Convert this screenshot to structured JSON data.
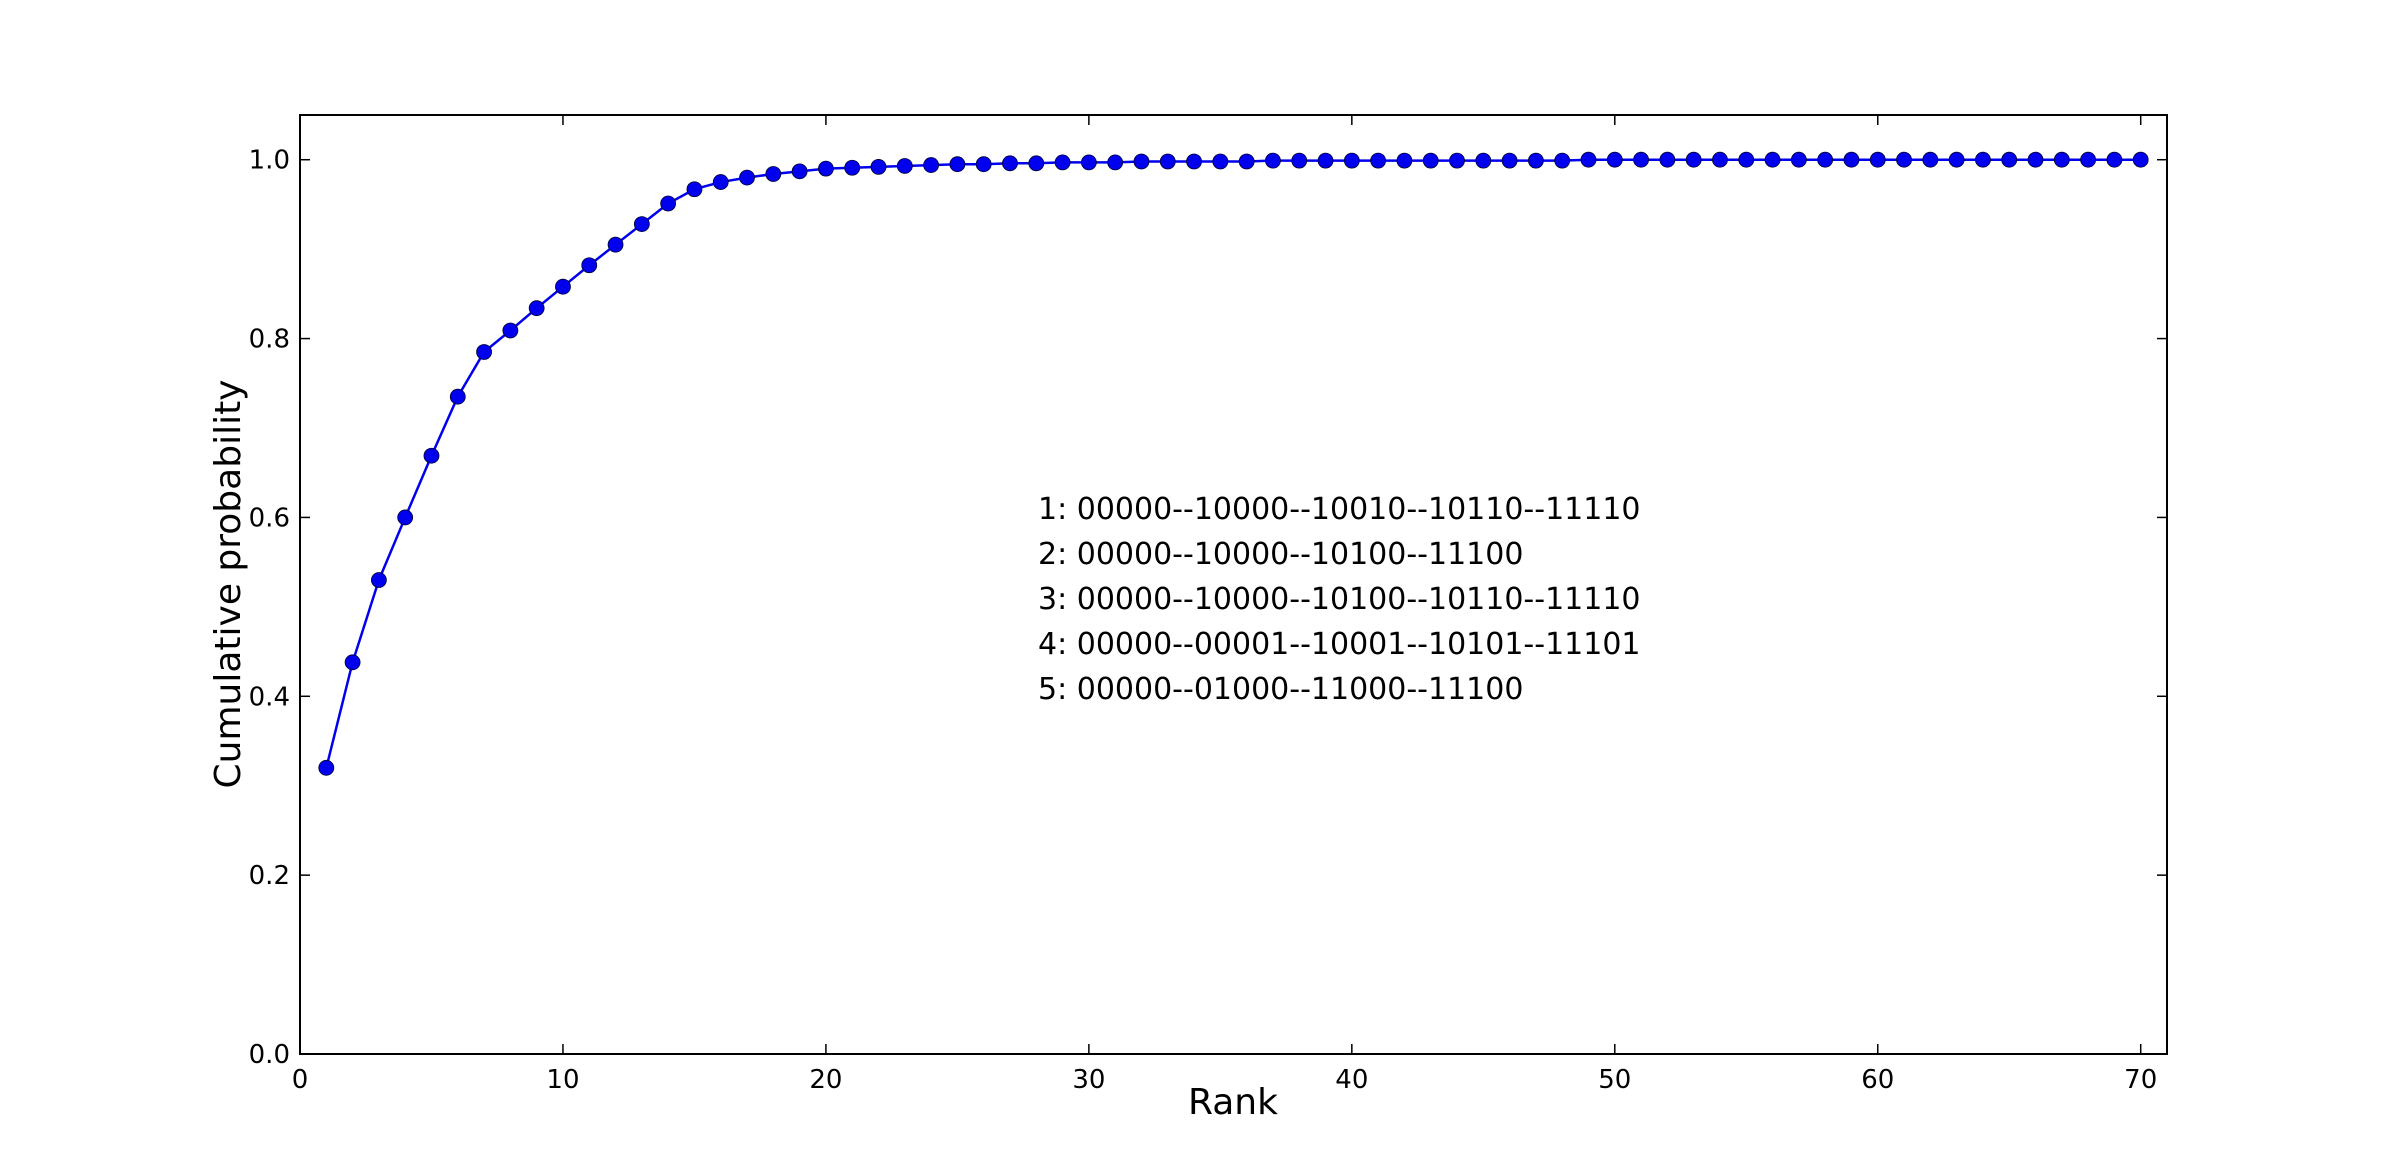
{
  "chart_data": {
    "type": "line",
    "title": "",
    "xlabel": "Rank",
    "ylabel": "Cumulative probability",
    "xlim": [
      0,
      71
    ],
    "ylim": [
      0.0,
      1.05
    ],
    "xticks": [
      "0",
      "10",
      "20",
      "30",
      "40",
      "50",
      "60",
      "70"
    ],
    "yticks": [
      "0.0",
      "0.2",
      "0.4",
      "0.6",
      "0.8",
      "1.0"
    ],
    "grid": false,
    "marker": "circle",
    "color": "#0000ee",
    "series": [
      {
        "x": [
          1,
          2,
          3,
          4,
          5,
          6,
          7,
          8,
          9,
          10,
          11,
          12,
          13,
          14,
          15,
          16,
          17,
          18,
          19,
          20,
          21,
          22,
          23,
          24,
          25,
          26,
          27,
          28,
          29,
          30,
          31,
          32,
          33,
          34,
          35,
          36,
          37,
          38,
          39,
          40,
          41,
          42,
          43,
          44,
          45,
          46,
          47,
          48,
          49,
          50,
          51,
          52,
          53,
          54,
          55,
          56,
          57,
          58,
          59,
          60,
          61,
          62,
          63,
          64,
          65,
          66,
          67,
          68,
          69,
          70
        ],
        "values": [
          0.32,
          0.438,
          0.53,
          0.6,
          0.669,
          0.735,
          0.785,
          0.809,
          0.834,
          0.858,
          0.882,
          0.905,
          0.928,
          0.951,
          0.967,
          0.975,
          0.98,
          0.984,
          0.987,
          0.99,
          0.991,
          0.992,
          0.993,
          0.994,
          0.995,
          0.995,
          0.996,
          0.996,
          0.997,
          0.997,
          0.997,
          0.998,
          0.998,
          0.998,
          0.998,
          0.998,
          0.999,
          0.999,
          0.999,
          0.999,
          0.999,
          0.999,
          0.999,
          0.999,
          0.999,
          0.999,
          0.999,
          0.999,
          1.0,
          1.0,
          1.0,
          1.0,
          1.0,
          1.0,
          1.0,
          1.0,
          1.0,
          1.0,
          1.0,
          1.0,
          1.0,
          1.0,
          1.0,
          1.0,
          1.0,
          1.0,
          1.0,
          1.0,
          1.0,
          1.0
        ]
      }
    ],
    "annotations": [
      "1: 00000--10000--10010--10110--11110",
      "2: 00000--10000--10100--11100",
      "3: 00000--10000--10100--10110--11110",
      "4: 00000--00001--10001--10101--11101",
      "5: 00000--01000--11000--11100"
    ]
  }
}
